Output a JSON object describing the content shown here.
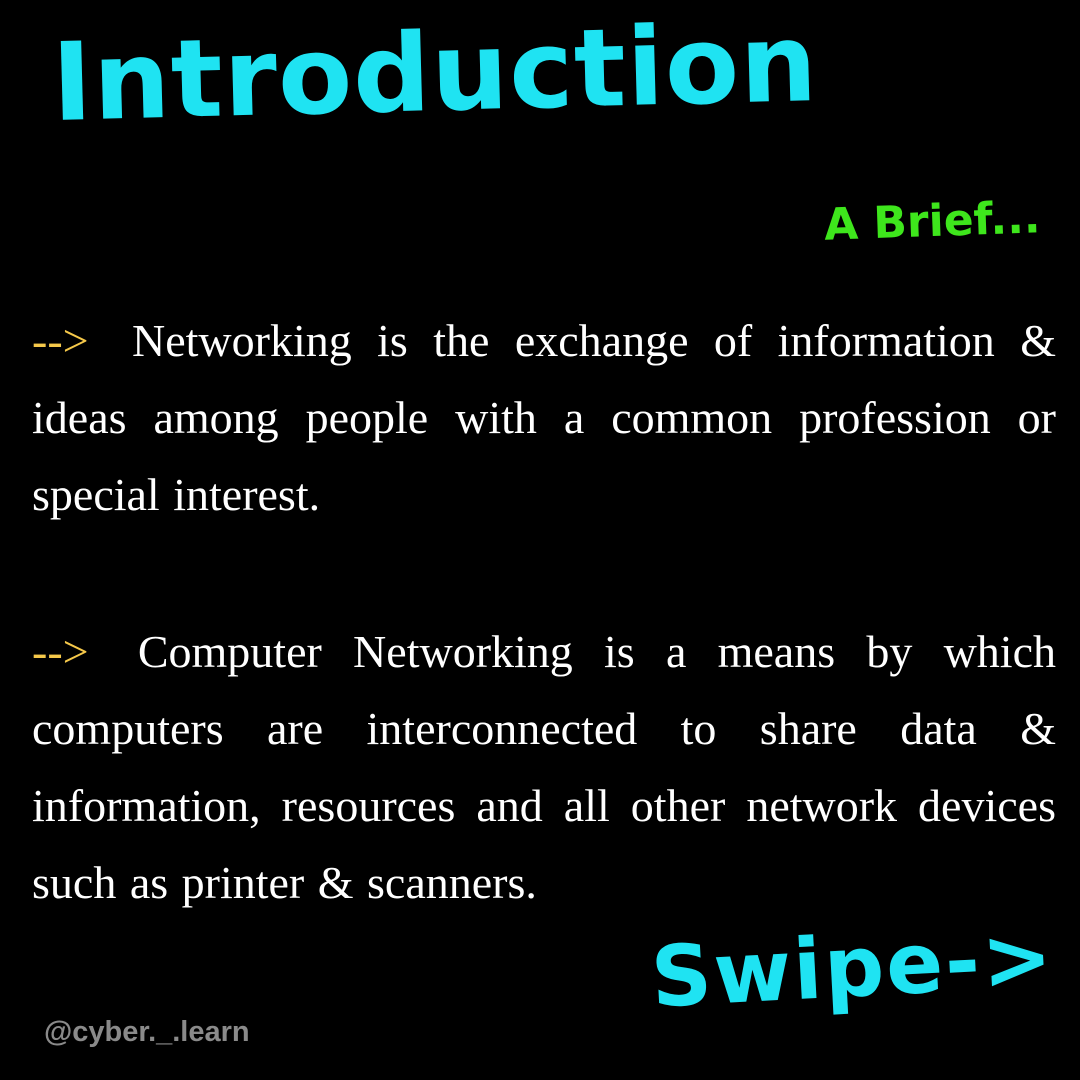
{
  "title": "Introduction",
  "subtitle": "A Brief...",
  "paragraphs": [
    {
      "arrow": "-->",
      "text": "Networking is the exchange of information & ideas among people with a common profession or special interest."
    },
    {
      "arrow": "-->",
      "text": "Computer Networking is a means by which computers are interconnected to share data & information, resources and all other network devices such as printer & scanners."
    }
  ],
  "swipe_label": "Swipe->",
  "handle": "@cyber._.learn",
  "colors": {
    "background": "#000000",
    "title": "#1fe3f2",
    "subtitle": "#3ee61c",
    "arrow": "#f5c84a",
    "body_text": "#ffffff",
    "handle": "#8a8a8a"
  }
}
